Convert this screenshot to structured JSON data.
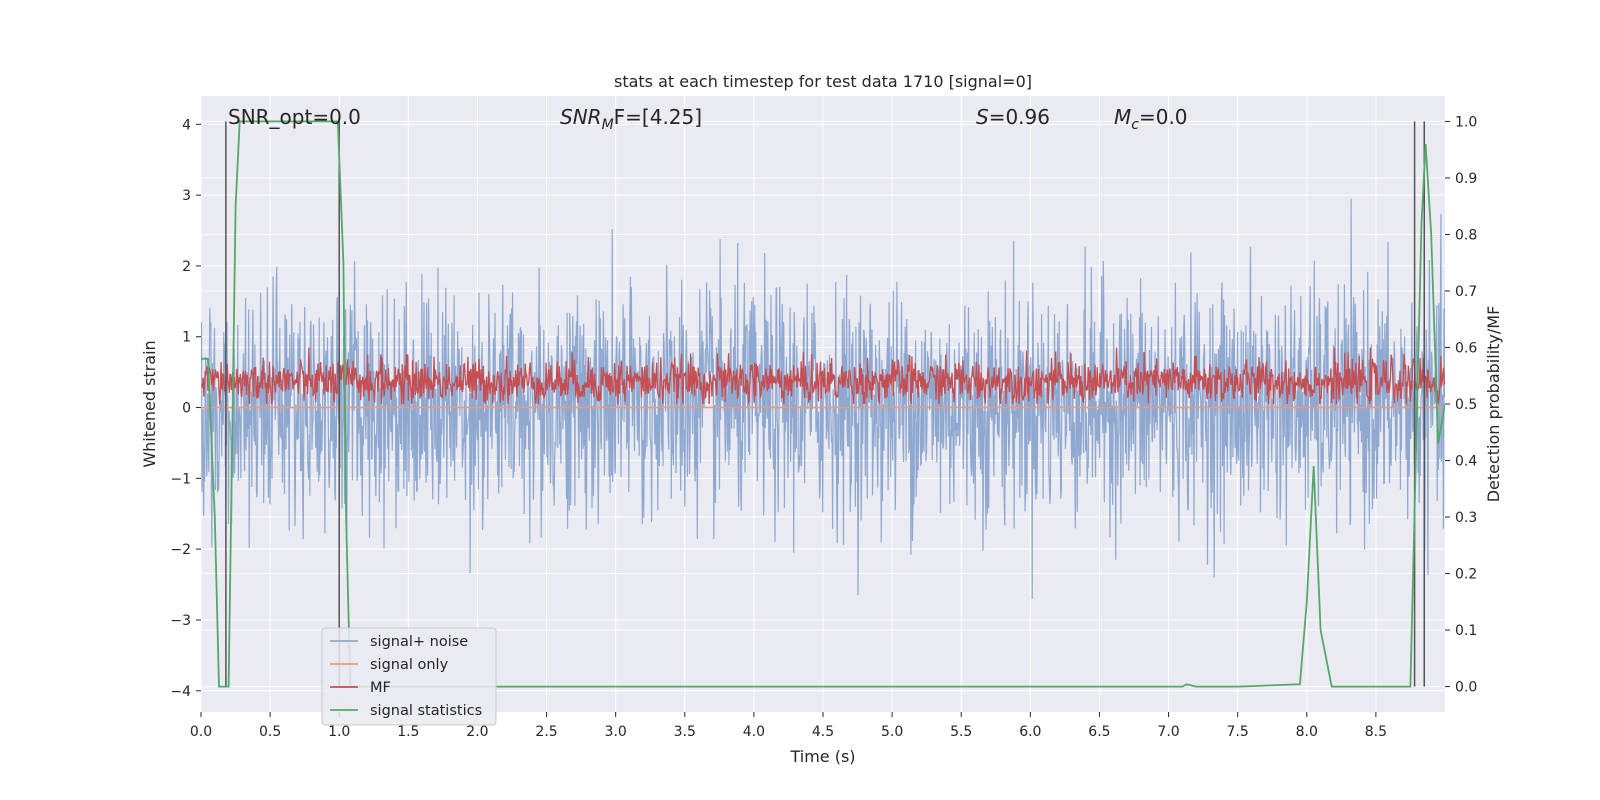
{
  "chart_data": {
    "type": "line",
    "title": "stats at each timestep for test data 1710 [signal=0]",
    "xlabel": "Time (s)",
    "ylabel": "Whitened strain",
    "y2label": "Detection probability/MF",
    "xlim": [
      0.0,
      9.0
    ],
    "ylim": [
      -4.3,
      4.4
    ],
    "y2lim": [
      -0.045,
      1.045
    ],
    "xticks": [
      "0.0",
      "0.5",
      "1.0",
      "1.5",
      "2.0",
      "2.5",
      "3.0",
      "3.5",
      "4.0",
      "4.5",
      "5.0",
      "5.5",
      "6.0",
      "6.5",
      "7.0",
      "7.5",
      "8.0",
      "8.5"
    ],
    "yticks": [
      "4",
      "3",
      "2",
      "1",
      "0",
      "−1",
      "−2",
      "−3",
      "−4"
    ],
    "y2ticks": [
      "1.0",
      "0.9",
      "0.8",
      "0.7",
      "0.6",
      "0.5",
      "0.4",
      "0.3",
      "0.2",
      "0.1",
      "0.0"
    ],
    "grid": true,
    "legend_position": "lower-left",
    "annotations": {
      "snr_opt": "SNR_opt=0.0",
      "snr_mf_pre": "SNR",
      "snr_mf_sub": "M",
      "snr_mf_post": "F=[4.25]",
      "s_pre": "S",
      "s_post": "=0.96",
      "mc_pre": "M",
      "mc_sub": "c",
      "mc_post": "=0.0"
    },
    "colors": {
      "noise": "#8fa8d0",
      "signal_only": "#ec9a7a",
      "mf": "#c44e52",
      "stats": "#55a868",
      "vline": "#555555",
      "background": "#eaeaf2"
    },
    "vertical_lines_x": [
      0.18,
      1.0,
      8.78,
      8.85
    ],
    "series": [
      {
        "name": "signal+ noise",
        "axis": "left",
        "style": "dense noise band",
        "y_range_typical": [
          -1.5,
          1.6
        ],
        "y_peak": [
          -3.9,
          4.0
        ]
      },
      {
        "name": "signal only",
        "axis": "left",
        "x": [
          0,
          9
        ],
        "y": [
          0,
          0
        ]
      },
      {
        "name": "MF",
        "axis": "right",
        "style": "dense noise band",
        "y_range_typical": [
          0.5,
          0.58
        ],
        "y_peak": [
          0.5,
          0.6
        ]
      },
      {
        "name": "signal statistics",
        "axis": "right",
        "x": [
          0.0,
          0.05,
          0.1,
          0.13,
          0.17,
          0.2,
          0.25,
          0.28,
          0.5,
          0.8,
          0.99,
          1.03,
          1.05,
          1.08,
          1.15,
          2.0,
          3.0,
          4.0,
          5.0,
          6.0,
          7.0,
          7.1,
          7.13,
          7.2,
          7.5,
          7.95,
          8.0,
          8.05,
          8.1,
          8.18,
          8.5,
          8.75,
          8.8,
          8.83,
          8.86,
          8.9,
          8.95,
          9.0
        ],
        "y": [
          0.58,
          0.58,
          0.3,
          0.0,
          0.0,
          0.0,
          0.85,
          1.0,
          1.0,
          1.0,
          1.0,
          0.75,
          0.3,
          0.0,
          0.0,
          0.0,
          0.0,
          0.0,
          0.0,
          0.0,
          0.0,
          0.0,
          0.004,
          0.0,
          0.0,
          0.004,
          0.15,
          0.39,
          0.1,
          0.0,
          0.0,
          0.0,
          0.52,
          0.82,
          0.96,
          0.8,
          0.43,
          0.5
        ]
      }
    ]
  }
}
